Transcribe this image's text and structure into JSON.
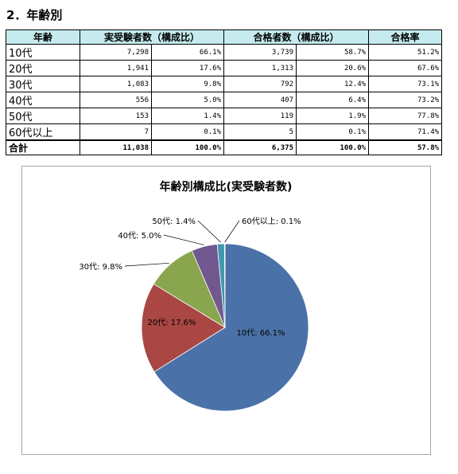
{
  "heading": "2．年齢別",
  "table": {
    "headers": [
      "年齢",
      "実受験者数（構成比）",
      "合格者数（構成比）",
      "合格率"
    ],
    "rows": [
      {
        "label": "10代",
        "examinees": "7,298",
        "examinees_pct": "66.1%",
        "passers": "3,739",
        "passers_pct": "58.7%",
        "rate": "51.2%"
      },
      {
        "label": "20代",
        "examinees": "1,941",
        "examinees_pct": "17.6%",
        "passers": "1,313",
        "passers_pct": "20.6%",
        "rate": "67.6%"
      },
      {
        "label": "30代",
        "examinees": "1,083",
        "examinees_pct": "9.8%",
        "passers": "792",
        "passers_pct": "12.4%",
        "rate": "73.1%"
      },
      {
        "label": "40代",
        "examinees": "556",
        "examinees_pct": "5.0%",
        "passers": "407",
        "passers_pct": "6.4%",
        "rate": "73.2%"
      },
      {
        "label": "50代",
        "examinees": "153",
        "examinees_pct": "1.4%",
        "passers": "119",
        "passers_pct": "1.9%",
        "rate": "77.8%"
      },
      {
        "label": "60代以上",
        "examinees": "7",
        "examinees_pct": "0.1%",
        "passers": "5",
        "passers_pct": "0.1%",
        "rate": "71.4%"
      }
    ],
    "total": {
      "label": "合計",
      "examinees": "11,038",
      "examinees_pct": "100.0%",
      "passers": "6,375",
      "passers_pct": "100.0%",
      "rate": "57.8%"
    }
  },
  "chart_data": {
    "type": "pie",
    "title": "年齢別構成比(実受験者数)",
    "slices": [
      {
        "label": "10代",
        "value": 66.1,
        "data_label": "10代: 66.1%",
        "color": "#4a72a8"
      },
      {
        "label": "20代",
        "value": 17.6,
        "data_label": "20代: 17.6%",
        "color": "#aa4644"
      },
      {
        "label": "30代",
        "value": 9.8,
        "data_label": "30代: 9.8%",
        "color": "#89a54e"
      },
      {
        "label": "40代",
        "value": 5.0,
        "data_label": "40代: 5.0%",
        "color": "#71588f"
      },
      {
        "label": "50代",
        "value": 1.4,
        "data_label": "50代: 1.4%",
        "color": "#4198af"
      },
      {
        "label": "60代以上",
        "value": 0.1,
        "data_label": "60代以上: 0.1%",
        "color": "#db843d"
      }
    ],
    "start_angle_deg": 0,
    "direction": "clockwise",
    "legend": "none"
  }
}
